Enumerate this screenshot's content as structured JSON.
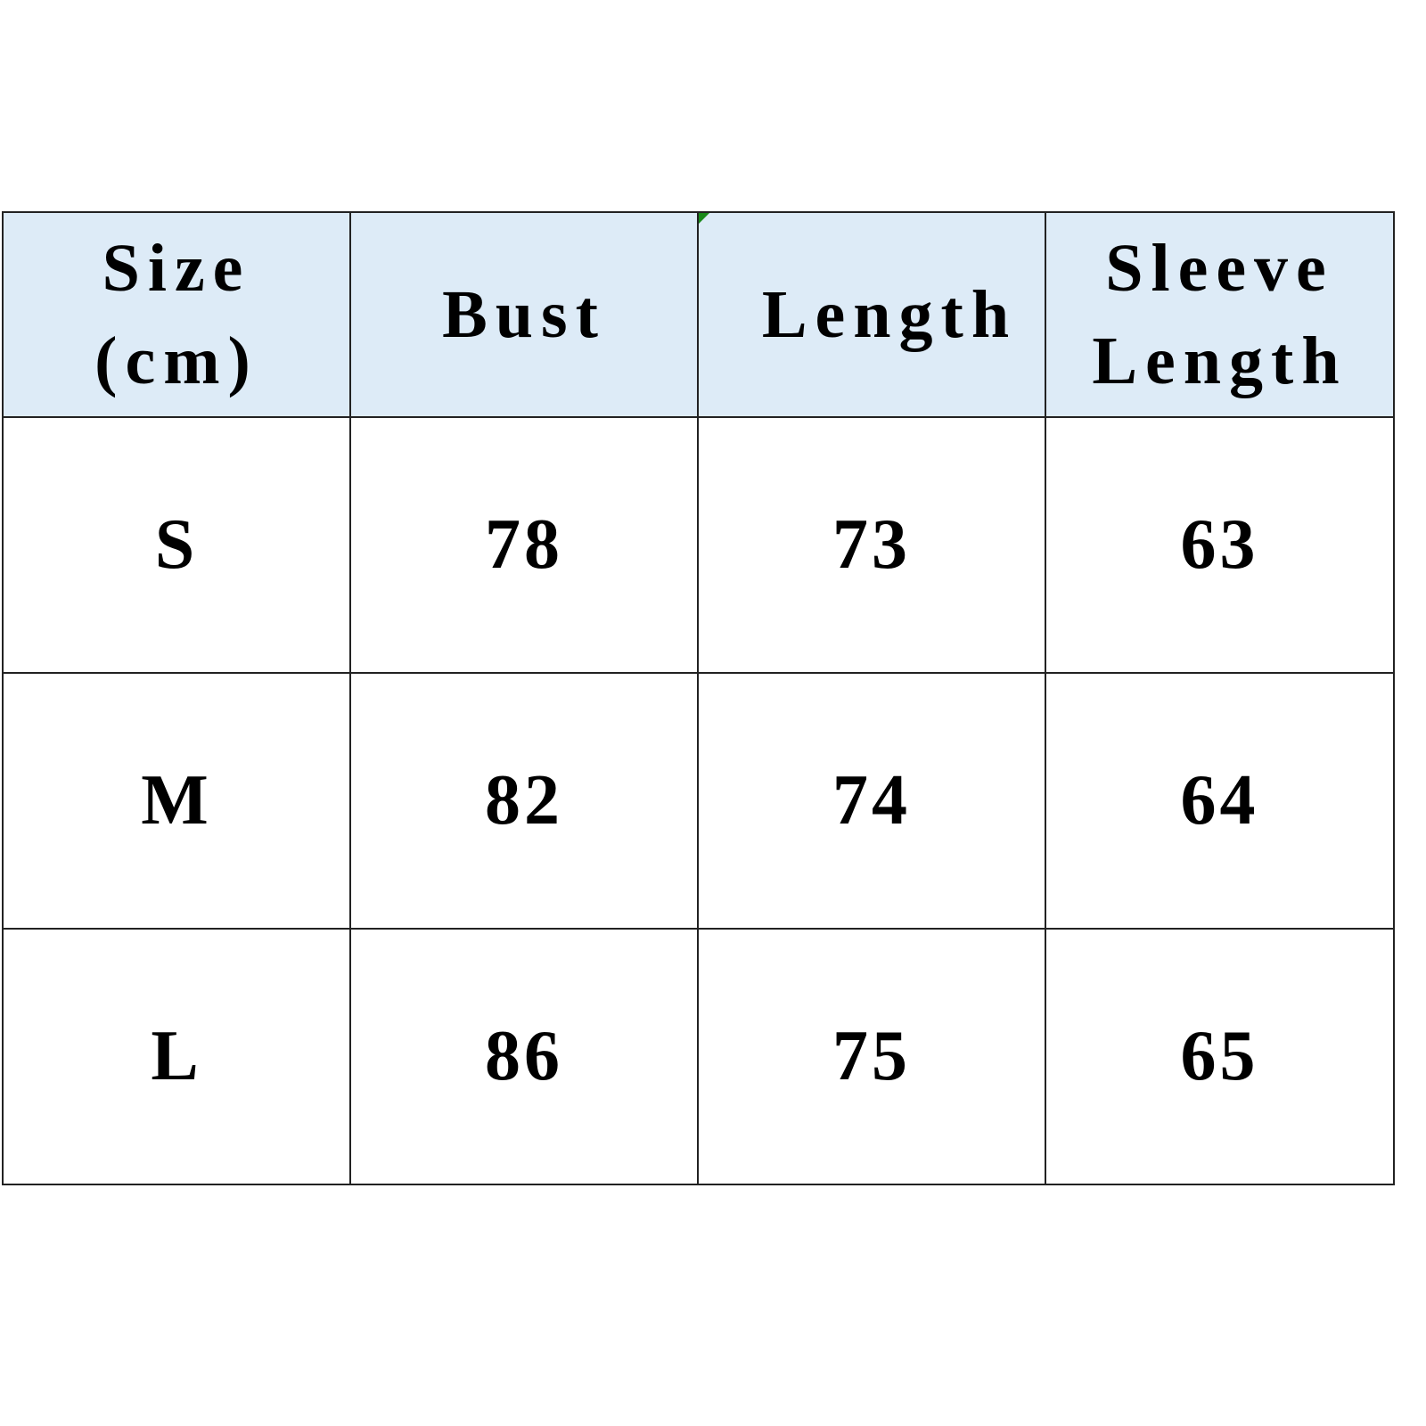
{
  "table": {
    "headers": [
      "Size (cm)",
      "Bust",
      "Length",
      "Sleeve Length"
    ],
    "header_bg": "#DDEBF7",
    "rows": [
      [
        "S",
        "78",
        "73",
        "63"
      ],
      [
        "M",
        "82",
        "74",
        "64"
      ],
      [
        "L",
        "86",
        "75",
        "65"
      ]
    ]
  }
}
